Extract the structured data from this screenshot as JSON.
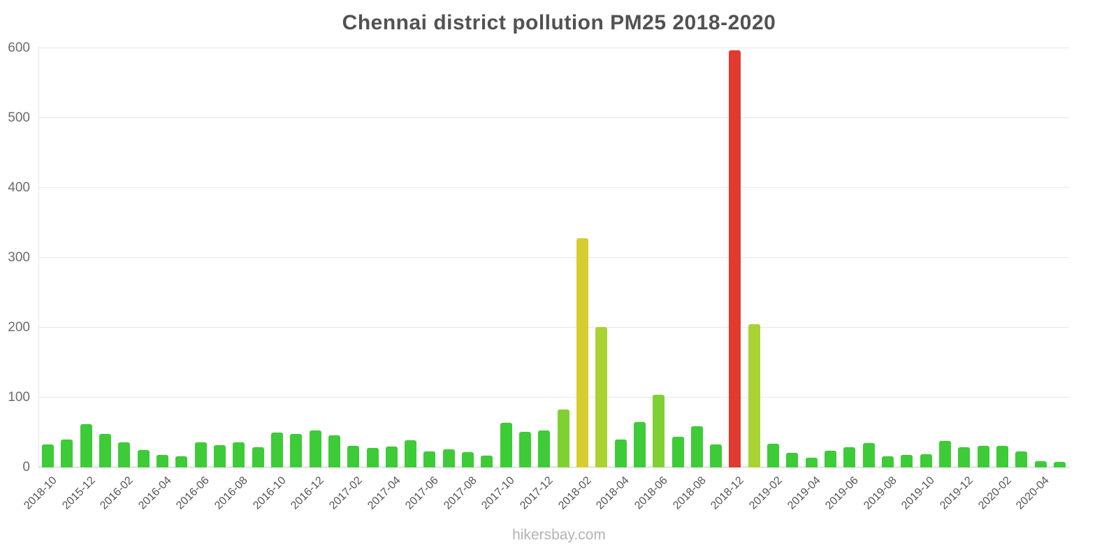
{
  "footer": "hikersbay.com",
  "chart_data": {
    "type": "bar",
    "title": "Chennai district pollution PM25 2018-2020",
    "xlabel": "",
    "ylabel": "",
    "ylim": [
      0,
      600
    ],
    "y_ticks": [
      0,
      100,
      200,
      300,
      400,
      500,
      600
    ],
    "grid": true,
    "legend": "none",
    "color_scale": [
      {
        "max": 79,
        "color": "#3ecb38"
      },
      {
        "max": 149,
        "color": "#7fd133"
      },
      {
        "max": 299,
        "color": "#a8d332"
      },
      {
        "max": 449,
        "color": "#d6ce2e"
      },
      {
        "max": 9999,
        "color": "#e13a30"
      }
    ],
    "bars": [
      {
        "label": "2018-10",
        "value": 33
      },
      {
        "label": "",
        "value": 40
      },
      {
        "label": "2015-12",
        "value": 62
      },
      {
        "label": "",
        "value": 48
      },
      {
        "label": "2016-02",
        "value": 36
      },
      {
        "label": "",
        "value": 25
      },
      {
        "label": "2016-04",
        "value": 18
      },
      {
        "label": "",
        "value": 16
      },
      {
        "label": "2016-06",
        "value": 36
      },
      {
        "label": "",
        "value": 32
      },
      {
        "label": "2016-08",
        "value": 36
      },
      {
        "label": "",
        "value": 29
      },
      {
        "label": "2016-10",
        "value": 50
      },
      {
        "label": "",
        "value": 48
      },
      {
        "label": "2016-12",
        "value": 53
      },
      {
        "label": "",
        "value": 46
      },
      {
        "label": "2017-02",
        "value": 31
      },
      {
        "label": "",
        "value": 28
      },
      {
        "label": "2017-04",
        "value": 30
      },
      {
        "label": "",
        "value": 39
      },
      {
        "label": "2017-06",
        "value": 23
      },
      {
        "label": "",
        "value": 26
      },
      {
        "label": "2017-08",
        "value": 22
      },
      {
        "label": "",
        "value": 17
      },
      {
        "label": "2017-10",
        "value": 64
      },
      {
        "label": "",
        "value": 51
      },
      {
        "label": "2017-12",
        "value": 53
      },
      {
        "label": "",
        "value": 83
      },
      {
        "label": "2018-02",
        "value": 328
      },
      {
        "label": "",
        "value": 201
      },
      {
        "label": "2018-04",
        "value": 40
      },
      {
        "label": "",
        "value": 65
      },
      {
        "label": "2018-06",
        "value": 104
      },
      {
        "label": "",
        "value": 44
      },
      {
        "label": "2018-08",
        "value": 59
      },
      {
        "label": "",
        "value": 33
      },
      {
        "label": "2018-12",
        "value": 597
      },
      {
        "label": "",
        "value": 205
      },
      {
        "label": "2019-02",
        "value": 34
      },
      {
        "label": "",
        "value": 21
      },
      {
        "label": "2019-04",
        "value": 14
      },
      {
        "label": "",
        "value": 24
      },
      {
        "label": "2019-06",
        "value": 29
      },
      {
        "label": "",
        "value": 35
      },
      {
        "label": "2019-08",
        "value": 16
      },
      {
        "label": "",
        "value": 18
      },
      {
        "label": "2019-10",
        "value": 19
      },
      {
        "label": "",
        "value": 38
      },
      {
        "label": "2019-12",
        "value": 29
      },
      {
        "label": "",
        "value": 31
      },
      {
        "label": "2020-02",
        "value": 31
      },
      {
        "label": "",
        "value": 23
      },
      {
        "label": "2020-04",
        "value": 9
      },
      {
        "label": "",
        "value": 8
      }
    ]
  }
}
